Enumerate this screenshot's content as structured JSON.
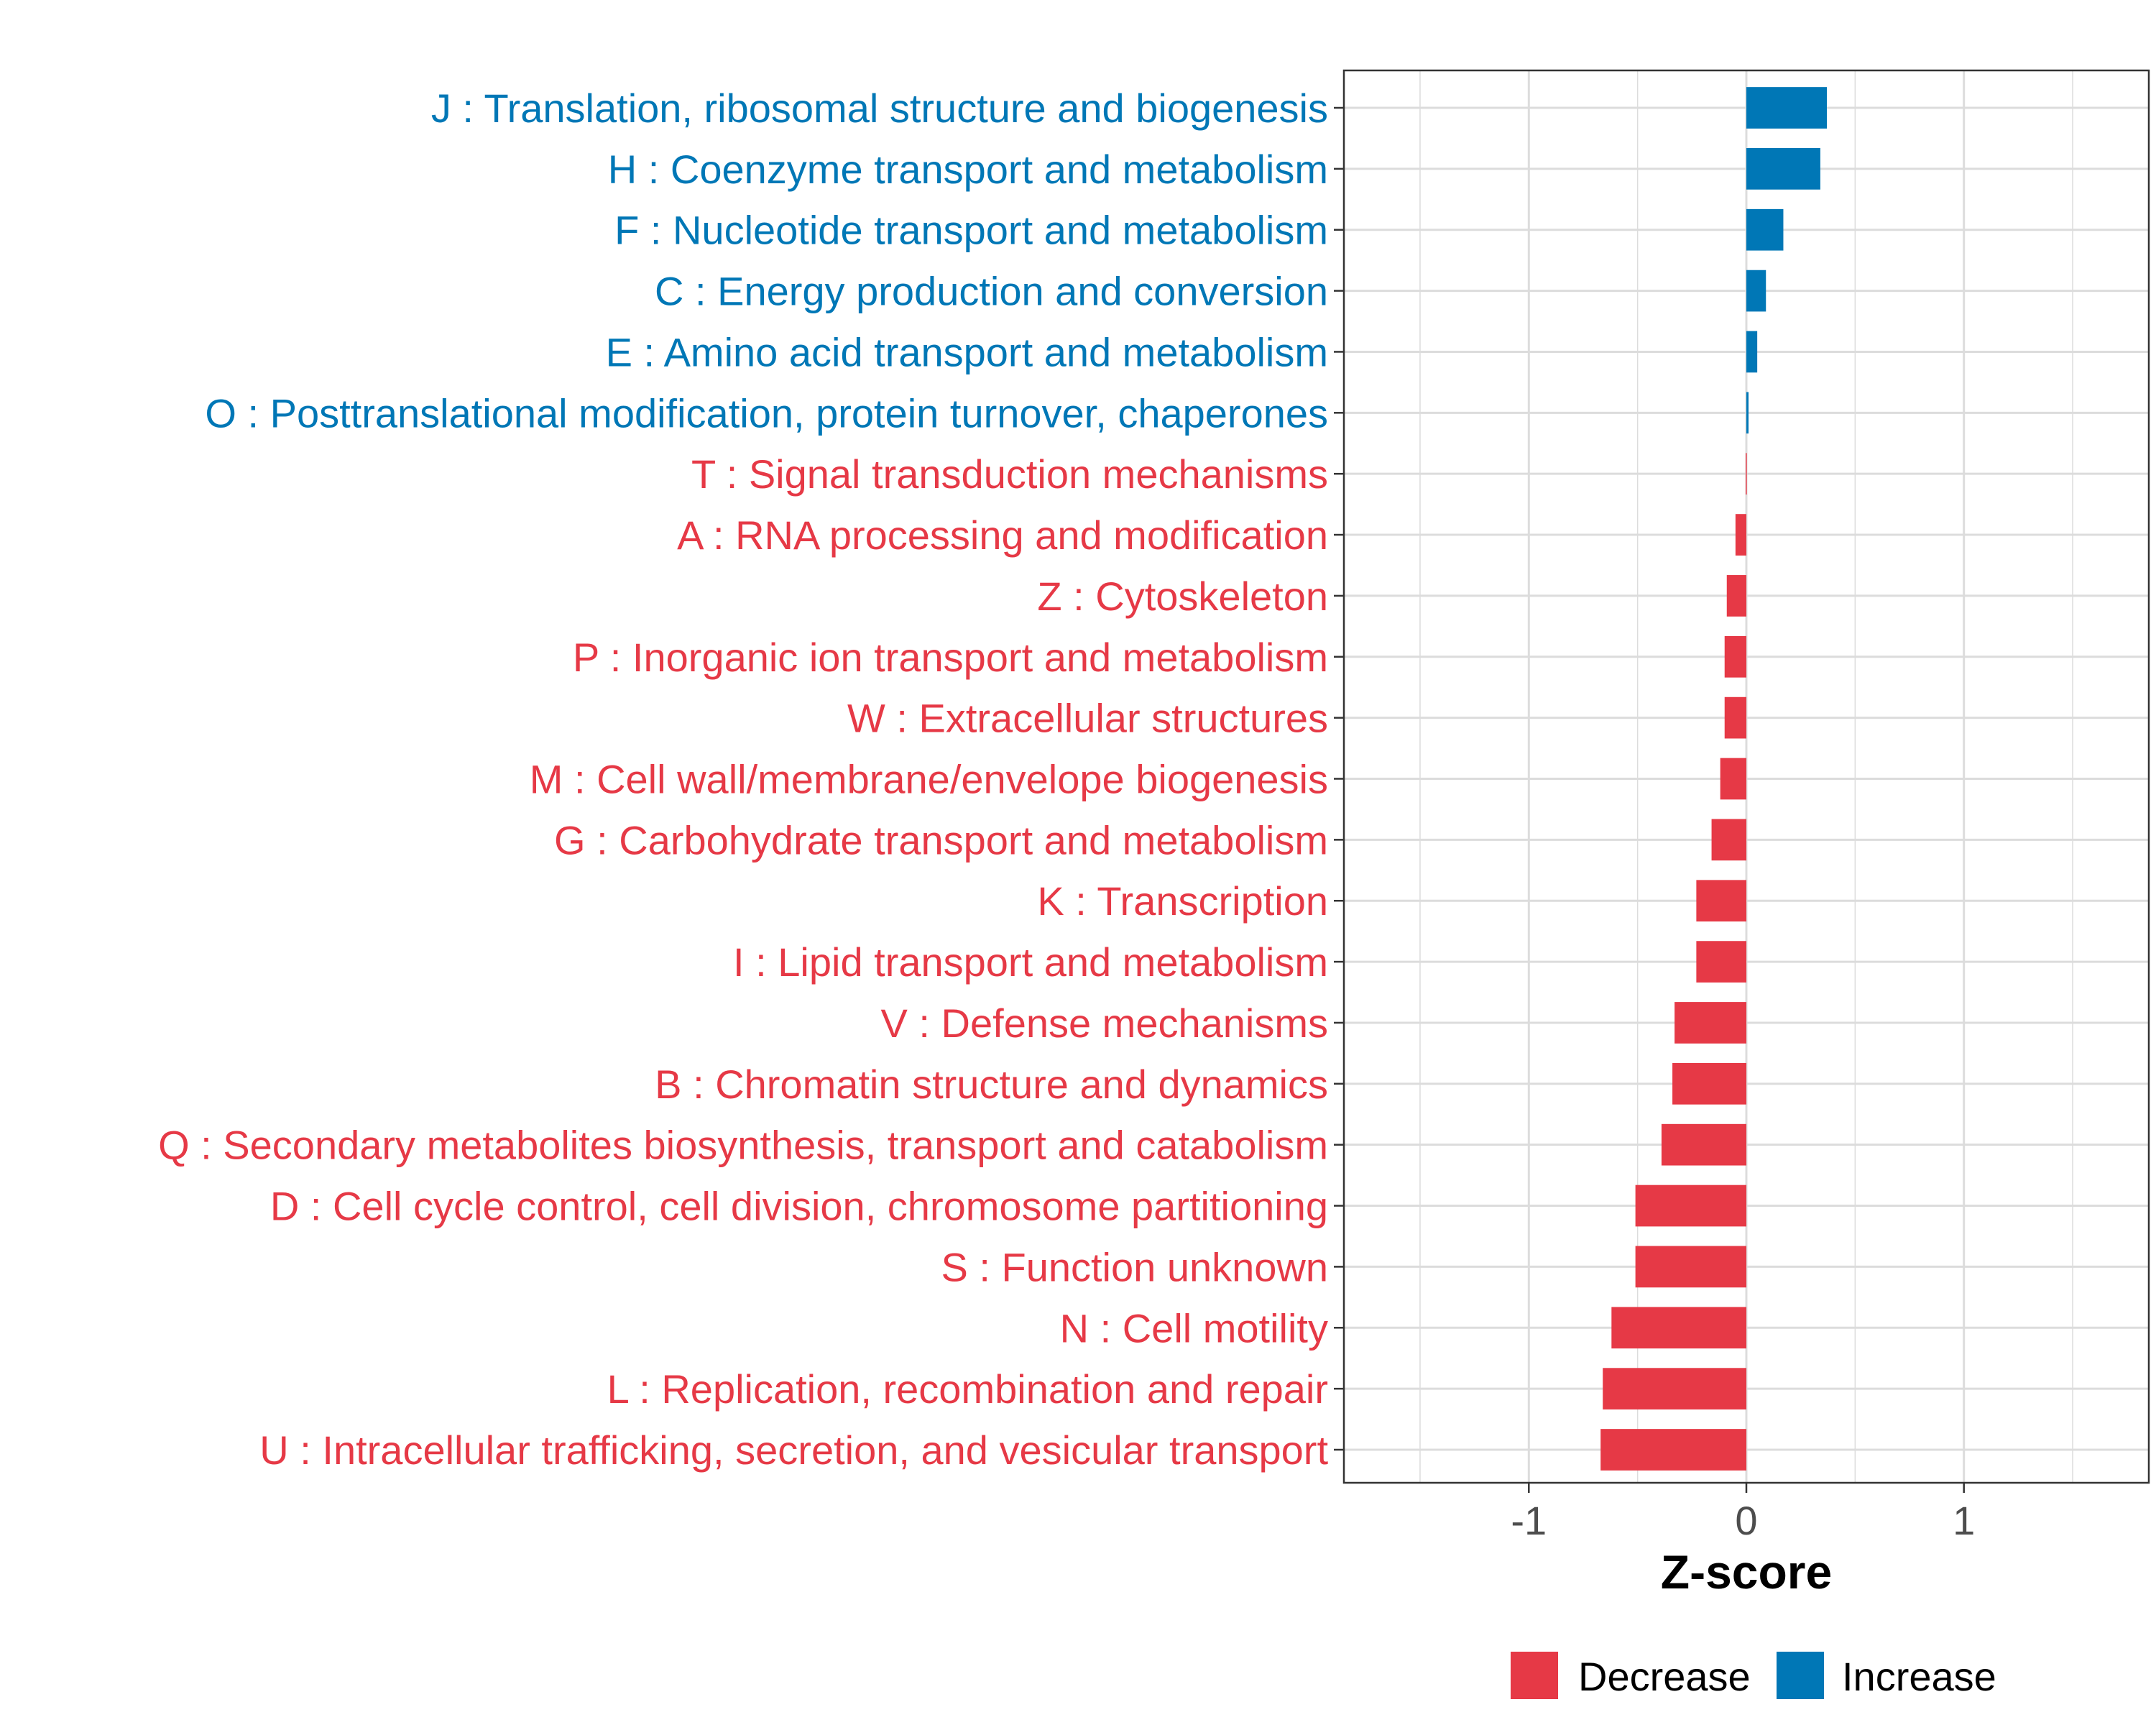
{
  "chart_data": {
    "type": "bar",
    "orientation": "horizontal",
    "xlabel": "Z-score",
    "ylabel": "",
    "xlim": [
      -1.85,
      1.85
    ],
    "xticks": [
      -1,
      0,
      1
    ],
    "xtick_labels": [
      "-1",
      "0",
      "1"
    ],
    "grid": true,
    "legend_position": "bottom",
    "colors": {
      "Decrease": "#E63946",
      "Increase": "#0077B6"
    },
    "legend": [
      {
        "name": "Decrease",
        "color": "#E63946"
      },
      {
        "name": "Increase",
        "color": "#0077B6"
      }
    ],
    "categories": [
      "J : Translation, ribosomal structure and biogenesis",
      "H : Coenzyme transport and metabolism",
      "F : Nucleotide transport and metabolism",
      "C : Energy production and conversion",
      "E : Amino acid transport and metabolism",
      "O : Posttranslational modification, protein turnover, chaperones",
      "T : Signal transduction mechanisms",
      "A : RNA processing and modification",
      "Z : Cytoskeleton",
      "P : Inorganic ion transport and metabolism",
      "W : Extracellular structures",
      "M : Cell wall/membrane/envelope biogenesis",
      "G : Carbohydrate transport and metabolism",
      "K : Transcription",
      "I : Lipid transport and metabolism",
      "V : Defense mechanisms",
      "B : Chromatin structure and dynamics",
      "Q : Secondary metabolites biosynthesis, transport and catabolism",
      "D : Cell cycle control, cell division, chromosome partitioning",
      "S : Function unknown",
      "N : Cell motility",
      "L : Replication, recombination and repair",
      "U : Intracellular trafficking, secretion, and vesicular transport"
    ],
    "values": [
      0.37,
      0.34,
      0.17,
      0.09,
      0.05,
      0.01,
      -0.003,
      -0.05,
      -0.09,
      -0.1,
      -0.1,
      -0.12,
      -0.16,
      -0.23,
      -0.23,
      -0.33,
      -0.34,
      -0.39,
      -0.51,
      -0.51,
      -0.62,
      -0.66,
      -0.67
    ],
    "direction": [
      "Increase",
      "Increase",
      "Increase",
      "Increase",
      "Increase",
      "Increase",
      "Decrease",
      "Decrease",
      "Decrease",
      "Decrease",
      "Decrease",
      "Decrease",
      "Decrease",
      "Decrease",
      "Decrease",
      "Decrease",
      "Decrease",
      "Decrease",
      "Decrease",
      "Decrease",
      "Decrease",
      "Decrease",
      "Decrease"
    ]
  }
}
